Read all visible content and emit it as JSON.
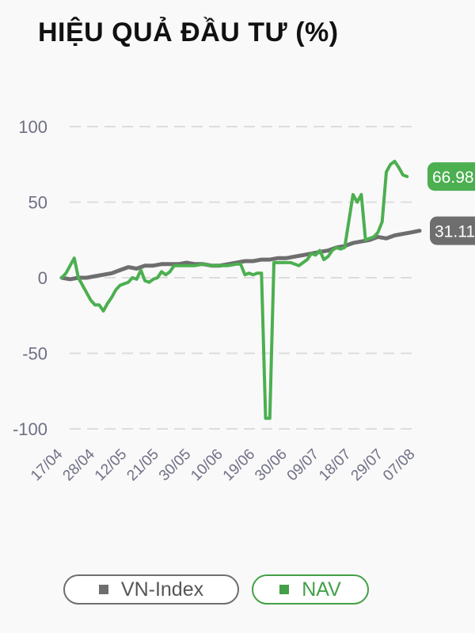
{
  "title": "HIỆU QUẢ ĐẦU TƯ (%)",
  "colors": {
    "nav": "#4caf50",
    "vnindex": "#6e6e6e",
    "grid": "#dddddd",
    "tick": "#6f6f86"
  },
  "legend": {
    "vnindex_label": "VN-Index",
    "nav_label": "NAV"
  },
  "chart_data": {
    "type": "line",
    "title": "HIỆU QUẢ ĐẦU TƯ (%)",
    "xlabel": "",
    "ylabel": "",
    "ylim": [
      -100,
      100
    ],
    "y_ticks": [
      100,
      50,
      0,
      -50,
      -100
    ],
    "x_ticks": [
      "17/04",
      "28/04",
      "12/05",
      "21/05",
      "30/05",
      "10/06",
      "19/06",
      "30/06",
      "09/07",
      "18/07",
      "29/07",
      "07/08"
    ],
    "grid": true,
    "legend_position": "bottom",
    "end_labels": {
      "NAV": "66.98",
      "VN-Index": "31.11"
    },
    "series": [
      {
        "name": "VN-Index",
        "color": "#6e6e6e",
        "points": [
          [
            0,
            0
          ],
          [
            2,
            -1
          ],
          [
            4,
            0
          ],
          [
            6,
            0
          ],
          [
            8,
            1
          ],
          [
            10,
            2
          ],
          [
            12,
            3
          ],
          [
            14,
            5
          ],
          [
            16,
            7
          ],
          [
            18,
            6
          ],
          [
            20,
            8
          ],
          [
            22,
            8
          ],
          [
            24,
            9
          ],
          [
            26,
            9
          ],
          [
            28,
            9
          ],
          [
            30,
            10
          ],
          [
            32,
            9
          ],
          [
            34,
            9
          ],
          [
            36,
            8
          ],
          [
            38,
            8
          ],
          [
            40,
            9
          ],
          [
            42,
            10
          ],
          [
            44,
            11
          ],
          [
            46,
            11
          ],
          [
            48,
            12
          ],
          [
            50,
            12
          ],
          [
            52,
            13
          ],
          [
            54,
            13
          ],
          [
            56,
            14
          ],
          [
            58,
            15
          ],
          [
            60,
            16
          ],
          [
            62,
            17
          ],
          [
            64,
            18
          ],
          [
            66,
            20
          ],
          [
            68,
            21
          ],
          [
            70,
            23
          ],
          [
            72,
            24
          ],
          [
            74,
            25
          ],
          [
            76,
            27
          ],
          [
            78,
            26
          ],
          [
            80,
            28
          ],
          [
            82,
            29
          ],
          [
            84,
            30
          ],
          [
            86,
            31.11
          ]
        ]
      },
      {
        "name": "NAV",
        "color": "#4caf50",
        "points": [
          [
            0,
            0
          ],
          [
            1,
            3
          ],
          [
            3,
            13
          ],
          [
            4,
            0
          ],
          [
            5,
            -5
          ],
          [
            6,
            -10
          ],
          [
            7,
            -15
          ],
          [
            8,
            -18
          ],
          [
            9,
            -18
          ],
          [
            10,
            -22
          ],
          [
            11,
            -17
          ],
          [
            12,
            -13
          ],
          [
            13,
            -8
          ],
          [
            14,
            -5
          ],
          [
            15,
            -4
          ],
          [
            16,
            -3
          ],
          [
            17,
            0
          ],
          [
            18,
            -1
          ],
          [
            19,
            5
          ],
          [
            20,
            -2
          ],
          [
            21,
            -3
          ],
          [
            22,
            -1
          ],
          [
            23,
            0
          ],
          [
            24,
            4
          ],
          [
            25,
            2
          ],
          [
            26,
            4
          ],
          [
            27,
            8
          ],
          [
            28,
            8
          ],
          [
            30,
            8
          ],
          [
            32,
            8
          ],
          [
            34,
            9
          ],
          [
            36,
            8
          ],
          [
            38,
            8
          ],
          [
            40,
            8
          ],
          [
            42,
            9
          ],
          [
            43,
            9
          ],
          [
            44,
            2
          ],
          [
            45,
            3
          ],
          [
            46,
            2
          ],
          [
            47,
            3
          ],
          [
            48,
            3
          ],
          [
            49,
            -93
          ],
          [
            50,
            -93
          ],
          [
            51,
            10
          ],
          [
            53,
            10
          ],
          [
            55,
            10
          ],
          [
            57,
            8
          ],
          [
            58,
            10
          ],
          [
            59,
            12
          ],
          [
            60,
            16
          ],
          [
            61,
            15
          ],
          [
            62,
            18
          ],
          [
            63,
            12
          ],
          [
            64,
            14
          ],
          [
            65,
            18
          ],
          [
            66,
            20
          ],
          [
            67,
            19
          ],
          [
            68,
            20
          ],
          [
            70,
            55
          ],
          [
            71,
            50
          ],
          [
            72,
            55
          ],
          [
            73,
            25
          ],
          [
            74,
            26
          ],
          [
            75,
            27
          ],
          [
            76,
            30
          ],
          [
            77,
            37
          ],
          [
            78,
            70
          ],
          [
            79,
            75
          ],
          [
            80,
            77
          ],
          [
            81,
            73
          ],
          [
            82,
            68
          ],
          [
            83,
            66.98
          ]
        ]
      }
    ]
  }
}
